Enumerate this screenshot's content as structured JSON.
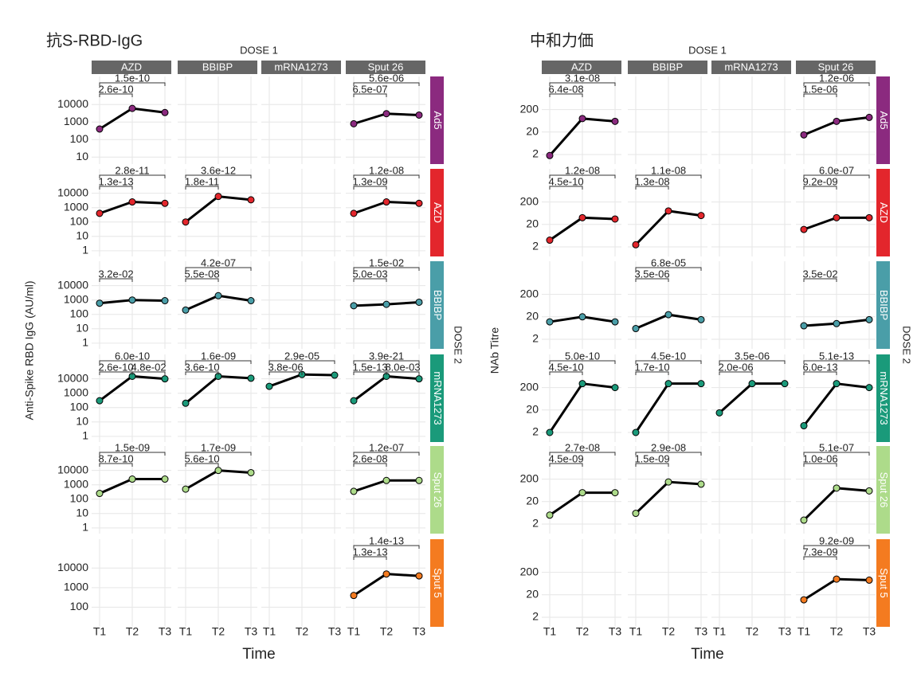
{
  "chart_data": [
    {
      "type": "line",
      "title": "抗S-RBD-IgG",
      "x_label": "Time",
      "y_label": "Anti-Spike RBD IgG (AU/ml)",
      "col_facet_title": "DOSE 1",
      "row_facet_title": "DOSE 2",
      "categories": [
        "T1",
        "T2",
        "T3"
      ],
      "log_scale": true,
      "grid": true,
      "line_color": "#000000",
      "columns": [
        "AZD",
        "BBIBP",
        "mRNA1273",
        "Sput 26"
      ],
      "rows": [
        {
          "label": "Ad5",
          "color": "#8b2a7f",
          "ylim": [
            4,
            400000
          ],
          "yticks": [
            10,
            100,
            1000,
            10000
          ]
        },
        {
          "label": "AZD",
          "color": "#e3262c",
          "ylim": [
            0.4,
            500000
          ],
          "yticks": [
            1,
            10,
            100,
            1000,
            10000
          ]
        },
        {
          "label": "BBIBP",
          "color": "#4a9ea8",
          "ylim": [
            0.4,
            500000
          ],
          "yticks": [
            1,
            10,
            100,
            1000,
            10000
          ]
        },
        {
          "label": "mRNA1273",
          "color": "#1a9a7a",
          "ylim": [
            0.4,
            500000
          ],
          "yticks": [
            1,
            10,
            100,
            1000,
            10000
          ]
        },
        {
          "label": "Sput 26",
          "color": "#addb8a",
          "ylim": [
            0.4,
            500000
          ],
          "yticks": [
            1,
            10,
            100,
            1000,
            10000
          ]
        },
        {
          "label": "Sput 5",
          "color": "#f47b20",
          "ylim": [
            10,
            300000
          ],
          "yticks": [
            100,
            1000,
            10000
          ]
        }
      ],
      "panels": [
        [
          {
            "values": [
              400,
              6000,
              3500
            ],
            "p_t1_t3": "1.5e-10",
            "p_t1_t2": "2.6e-10"
          },
          null,
          null,
          {
            "values": [
              800,
              3000,
              2500
            ],
            "p_t1_t3": "5.6e-06",
            "p_t1_t2": "6.5e-07"
          }
        ],
        [
          {
            "values": [
              400,
              2500,
              2000
            ],
            "p_t1_t3": "2.8e-11",
            "p_t1_t2": "1.3e-13"
          },
          {
            "values": [
              100,
              6000,
              3500
            ],
            "p_t1_t3": "3.6e-12",
            "p_t1_t2": "1.8e-11"
          },
          null,
          {
            "values": [
              400,
              2500,
              2000
            ],
            "p_t1_t3": "1.2e-08",
            "p_t1_t2": "1.3e-09"
          }
        ],
        [
          {
            "values": [
              600,
              1000,
              900
            ],
            "p_t1_t2": "3.2e-02"
          },
          {
            "values": [
              200,
              2000,
              900
            ],
            "p_t1_t3": "4.2e-07",
            "p_t1_t2": "5.5e-08"
          },
          null,
          {
            "values": [
              400,
              500,
              700
            ],
            "p_t1_t3": "1.5e-02",
            "p_t1_t2": "5.0e-03"
          }
        ],
        [
          {
            "values": [
              300,
              15000,
              10000
            ],
            "p_t1_t3": "6.0e-10",
            "p_t1_t2": "2.6e-10",
            "p_t2_t3": "4.8e-02"
          },
          {
            "values": [
              200,
              15000,
              11000
            ],
            "p_t1_t3": "1.6e-09",
            "p_t1_t2": "3.6e-10"
          },
          {
            "values": [
              3000,
              20000,
              18000
            ],
            "p_t1_t3": "2.9e-05",
            "p_t1_t2": "3.8e-06"
          },
          {
            "values": [
              300,
              15000,
              10000
            ],
            "p_t1_t3": "3.9e-21",
            "p_t1_t2": "1.5e-13",
            "p_t2_t3": "8.0e-03"
          }
        ],
        [
          {
            "values": [
              250,
              2500,
              2500
            ],
            "p_t1_t3": "1.5e-09",
            "p_t1_t2": "8.7e-10"
          },
          {
            "values": [
              500,
              10000,
              7000
            ],
            "p_t1_t3": "1.7e-09",
            "p_t1_t2": "5.6e-10"
          },
          null,
          {
            "values": [
              350,
              2000,
              2000
            ],
            "p_t1_t3": "1.2e-07",
            "p_t1_t2": "2.6e-08"
          }
        ],
        [
          null,
          null,
          null,
          {
            "values": [
              400,
              5000,
              4000
            ],
            "p_t1_t3": "1.4e-13",
            "p_t1_t2": "1.3e-13"
          }
        ]
      ]
    },
    {
      "type": "line",
      "title": "中和力価",
      "x_label": "Time",
      "y_label": "NAb Titre",
      "col_facet_title": "DOSE 1",
      "row_facet_title": "DOSE 2",
      "categories": [
        "T1",
        "T2",
        "T3"
      ],
      "log_scale": true,
      "grid": true,
      "line_color": "#000000",
      "columns": [
        "AZD",
        "BBIBP",
        "mRNA1273",
        "Sput 26"
      ],
      "rows": [
        {
          "label": "Ad5",
          "color": "#8b2a7f",
          "ylim": [
            0.75,
            6000
          ],
          "yticks": [
            2,
            20,
            200
          ]
        },
        {
          "label": "AZD",
          "color": "#e3262c",
          "ylim": [
            0.75,
            6000
          ],
          "yticks": [
            2,
            20,
            200
          ]
        },
        {
          "label": "BBIBP",
          "color": "#4a9ea8",
          "ylim": [
            0.75,
            6000
          ],
          "yticks": [
            2,
            20,
            200
          ]
        },
        {
          "label": "mRNA1273",
          "color": "#1a9a7a",
          "ylim": [
            0.75,
            6000
          ],
          "yticks": [
            2,
            20,
            200
          ]
        },
        {
          "label": "Sput 26",
          "color": "#addb8a",
          "ylim": [
            0.75,
            6000
          ],
          "yticks": [
            2,
            20,
            200
          ]
        },
        {
          "label": "Sput 5",
          "color": "#f47b20",
          "ylim": [
            0.75,
            6000
          ],
          "yticks": [
            2,
            20,
            200
          ]
        }
      ],
      "panels": [
        [
          {
            "values": [
              1.8,
              80,
              60
            ],
            "p_t1_t3": "3.1e-08",
            "p_t1_t2": "6.4e-08"
          },
          null,
          null,
          {
            "values": [
              15,
              60,
              90
            ],
            "p_t1_t3": "1.2e-06",
            "p_t1_t2": "1.5e-06"
          }
        ],
        [
          {
            "values": [
              4,
              40,
              35
            ],
            "p_t1_t3": "1.2e-08",
            "p_t1_t2": "4.5e-10"
          },
          {
            "values": [
              2.5,
              80,
              50
            ],
            "p_t1_t3": "1.1e-08",
            "p_t1_t2": "1.3e-08"
          },
          null,
          {
            "values": [
              12,
              40,
              40
            ],
            "p_t1_t3": "6.0e-07",
            "p_t1_t2": "9.2e-09"
          }
        ],
        [
          {
            "values": [
              12,
              20,
              12
            ]
          },
          {
            "values": [
              6,
              25,
              15
            ],
            "p_t1_t3": "6.8e-05",
            "p_t1_t2": "3.5e-06"
          },
          null,
          {
            "values": [
              8,
              10,
              15
            ],
            "p_t1_t2": "3.5e-02"
          }
        ],
        [
          {
            "values": [
              2,
              300,
              200
            ],
            "p_t1_t3": "5.0e-10",
            "p_t1_t2": "4.5e-10"
          },
          {
            "values": [
              2,
              300,
              300
            ],
            "p_t1_t3": "4.5e-10",
            "p_t1_t2": "1.7e-10"
          },
          {
            "values": [
              15,
              300,
              300
            ],
            "p_t1_t3": "3.5e-06",
            "p_t1_t2": "2.0e-06"
          },
          {
            "values": [
              4,
              300,
              200
            ],
            "p_t1_t3": "5.1e-13",
            "p_t1_t2": "6.0e-13"
          }
        ],
        [
          {
            "values": [
              5,
              50,
              50
            ],
            "p_t1_t3": "2.7e-08",
            "p_t1_t2": "4.5e-09"
          },
          {
            "values": [
              6,
              150,
              120
            ],
            "p_t1_t3": "2.9e-08",
            "p_t1_t2": "1.5e-09"
          },
          null,
          {
            "values": [
              3,
              80,
              60
            ],
            "p_t1_t3": "5.1e-07",
            "p_t1_t2": "1.0e-06"
          }
        ],
        [
          null,
          null,
          null,
          {
            "values": [
              12,
              100,
              90
            ],
            "p_t1_t3": "9.2e-09",
            "p_t1_t2": "7.3e-09"
          }
        ]
      ]
    }
  ]
}
